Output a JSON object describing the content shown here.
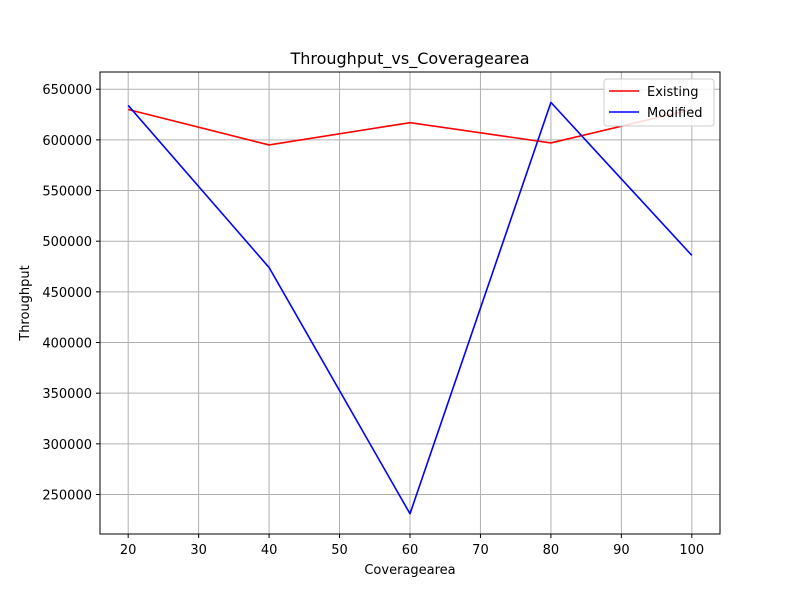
{
  "chart_data": {
    "type": "line",
    "title": "Throughput_vs_Coveragearea",
    "xlabel": "Coveragearea",
    "ylabel": "Throughput",
    "x": [
      20,
      40,
      60,
      80,
      100
    ],
    "xticks": [
      "20",
      "30",
      "40",
      "50",
      "60",
      "70",
      "80",
      "90",
      "100"
    ],
    "yticks": [
      "250000",
      "300000",
      "350000",
      "400000",
      "450000",
      "500000",
      "550000",
      "600000",
      "650000"
    ],
    "xlim": [
      16,
      104
    ],
    "ylim": [
      211000,
      667000
    ],
    "grid": true,
    "legend_position": "top-right",
    "series": [
      {
        "name": "Existing",
        "color": "#ff0000",
        "values": [
          630000,
          595000,
          617000,
          597000,
          630000
        ]
      },
      {
        "name": "Modified",
        "color": "#0000ff",
        "values": [
          634000,
          474000,
          231000,
          637000,
          486000
        ]
      }
    ]
  }
}
